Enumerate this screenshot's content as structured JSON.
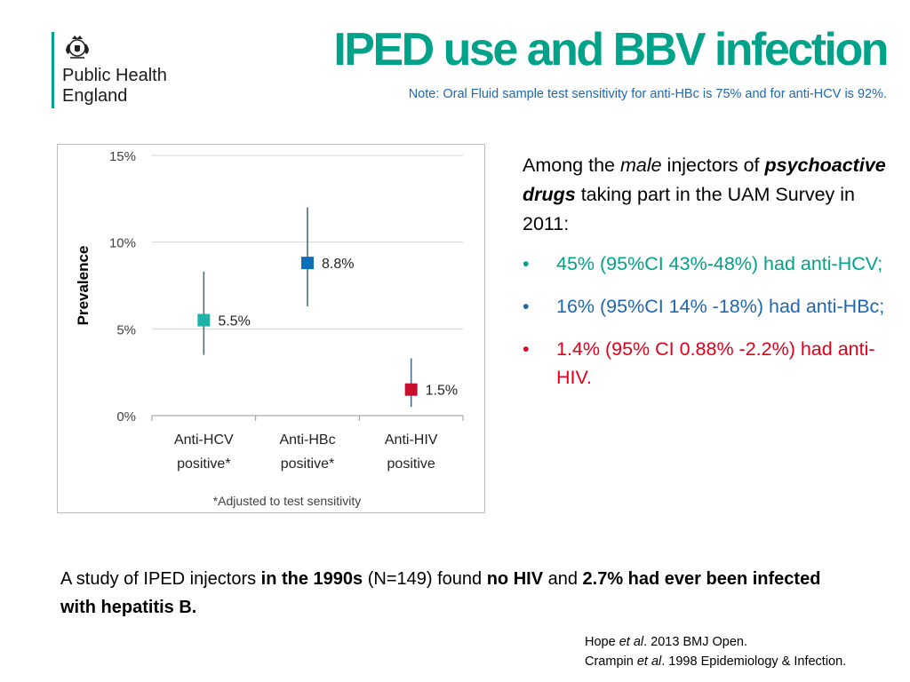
{
  "brand": {
    "logo_text": "Public Health\nEngland",
    "colors": {
      "teal": "#00a28a",
      "blue": "#1f67b1",
      "red": "#e2001a",
      "chart_teal": "#1fb3a8",
      "chart_blue": "#0b6fb8",
      "chart_red": "#c8102e",
      "error_bar": "#4a6b8a"
    }
  },
  "header": {
    "title": "IPED use and BBV infection",
    "note": "Note: Oral Fluid sample test sensitivity for anti-HBc is 75% and for anti-HCV is 92%."
  },
  "chart_data": {
    "type": "scatter",
    "ylabel": "Prevalence",
    "ylim": [
      0,
      15
    ],
    "yticks": [
      0,
      5,
      10,
      15
    ],
    "ytick_labels": [
      "0%",
      "5%",
      "10%",
      "15%"
    ],
    "grid": true,
    "footnote": "*Adjusted to test sensitivity",
    "categories": [
      {
        "line1": "Anti-HCV",
        "line2": "positive*"
      },
      {
        "line1": "Anti-HBc",
        "line2": "positive*"
      },
      {
        "line1": "Anti-HIV",
        "line2": "positive"
      }
    ],
    "values": [
      5.5,
      8.8,
      1.5
    ],
    "value_labels": [
      "5.5%",
      "8.8%",
      "1.5%"
    ],
    "ci_low": [
      3.5,
      6.3,
      0.5
    ],
    "ci_high": [
      8.3,
      12.0,
      3.3
    ],
    "colors": [
      "#1fb3a8",
      "#0b6fb8",
      "#c8102e"
    ]
  },
  "side_text": {
    "intro_a": "Among the ",
    "intro_male": "male",
    "intro_b": " injectors of ",
    "intro_drugs": "psychoactive drugs",
    "intro_c": " taking part in the UAM Survey in 2011:",
    "bullet_symbol": "•",
    "bullets": [
      {
        "text": "45% (95%CI 43%-48%) had anti-HCV;",
        "color": "#00a28a"
      },
      {
        "text": "16% (95%CI 14% -18%) had anti-HBc;",
        "color": "#1f67b1"
      },
      {
        "text": "1.4% (95% CI 0.88% -2.2%) had anti-HIV.",
        "color": "#e2001a"
      }
    ]
  },
  "study": {
    "p1": "A study of IPED injectors ",
    "b1": "in the 1990s",
    "p2": " (N=149) found ",
    "b2": "no HIV",
    "p3": " and ",
    "b3": "2.7% had ever been infected with hepatitis B."
  },
  "references": {
    "r1_a": "Hope ",
    "r1_i": "et al",
    "r1_b": ". 2013 BMJ Open.",
    "r2_a": "Crampin ",
    "r2_i": "et al",
    "r2_b": ". 1998 Epidemiology & Infection."
  }
}
